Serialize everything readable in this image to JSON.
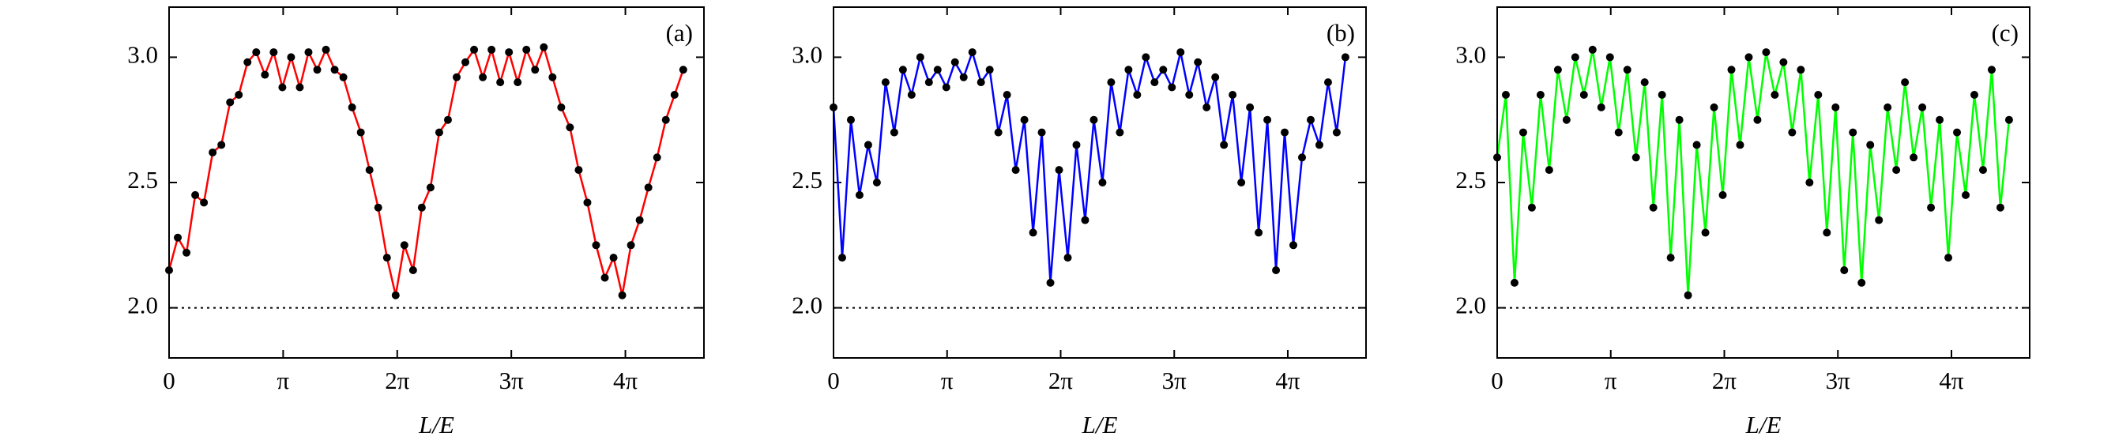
{
  "chart_data": [
    {
      "type": "line",
      "annotation": "(a)",
      "xlabel": "L/E",
      "color": "#ff0000",
      "marker_color": "#000000",
      "hline": {
        "value": 2,
        "style": "dotted"
      },
      "xlim": [
        0,
        14.73
      ],
      "ylim": [
        1.8,
        3.2
      ],
      "xticks": [
        0,
        {
          "value": 3.1416,
          "label": "π"
        },
        {
          "value": 6.2832,
          "label": "2π"
        },
        {
          "value": 9.4248,
          "label": "3π"
        },
        {
          "value": 12.5664,
          "label": "4π"
        }
      ],
      "yticks": [
        {
          "value": 2,
          "label": "2.0"
        },
        2.5,
        {
          "value": 3,
          "label": "3.0"
        }
      ],
      "x": [
        0,
        0.24,
        0.48,
        0.72,
        0.96,
        1.2,
        1.44,
        1.68,
        1.92,
        2.16,
        2.4,
        2.64,
        2.88,
        3.12,
        3.36,
        3.6,
        3.84,
        4.08,
        4.32,
        4.56,
        4.8,
        5.04,
        5.28,
        5.52,
        5.76,
        6,
        6.24,
        6.48,
        6.72,
        6.96,
        7.2,
        7.44,
        7.68,
        7.92,
        8.16,
        8.4,
        8.64,
        8.88,
        9.12,
        9.36,
        9.6,
        9.84,
        10.08,
        10.32,
        10.56,
        10.8,
        11.04,
        11.28,
        11.52,
        11.76,
        12,
        12.24,
        12.48,
        12.72,
        12.96,
        13.2,
        13.44,
        13.68,
        13.92,
        14.16
      ],
      "values": [
        2.15,
        2.28,
        2.22,
        2.45,
        2.42,
        2.62,
        2.65,
        2.82,
        2.85,
        2.98,
        3.02,
        2.93,
        3.02,
        2.88,
        3.0,
        2.88,
        3.02,
        2.95,
        3.03,
        2.95,
        2.92,
        2.8,
        2.7,
        2.55,
        2.4,
        2.2,
        2.05,
        2.25,
        2.15,
        2.4,
        2.48,
        2.7,
        2.75,
        2.92,
        2.98,
        3.03,
        2.92,
        3.03,
        2.9,
        3.02,
        2.9,
        3.03,
        2.95,
        3.04,
        2.92,
        2.8,
        2.72,
        2.55,
        2.42,
        2.25,
        2.12,
        2.2,
        2.05,
        2.25,
        2.35,
        2.48,
        2.6,
        2.75,
        2.85,
        2.95
      ]
    },
    {
      "type": "line",
      "annotation": "(b)",
      "xlabel": "L/E",
      "color": "#0000ff",
      "marker_color": "#000000",
      "hline": {
        "value": 2,
        "style": "dotted"
      },
      "xlim": [
        0,
        14.73
      ],
      "ylim": [
        1.8,
        3.2
      ],
      "xticks": [
        0,
        {
          "value": 3.1416,
          "label": "π"
        },
        {
          "value": 6.2832,
          "label": "2π"
        },
        {
          "value": 9.4248,
          "label": "3π"
        },
        {
          "value": 12.5664,
          "label": "4π"
        }
      ],
      "yticks": [
        {
          "value": 2,
          "label": "2.0"
        },
        2.5,
        {
          "value": 3,
          "label": "3.0"
        }
      ],
      "x": [
        0,
        0.24,
        0.48,
        0.72,
        0.96,
        1.2,
        1.44,
        1.68,
        1.92,
        2.16,
        2.4,
        2.64,
        2.88,
        3.12,
        3.36,
        3.6,
        3.84,
        4.08,
        4.32,
        4.56,
        4.8,
        5.04,
        5.28,
        5.52,
        5.76,
        6,
        6.24,
        6.48,
        6.72,
        6.96,
        7.2,
        7.44,
        7.68,
        7.92,
        8.16,
        8.4,
        8.64,
        8.88,
        9.12,
        9.36,
        9.6,
        9.84,
        10.08,
        10.32,
        10.56,
        10.8,
        11.04,
        11.28,
        11.52,
        11.76,
        12,
        12.24,
        12.48,
        12.72,
        12.96,
        13.2,
        13.44,
        13.68,
        13.92,
        14.16
      ],
      "values": [
        2.8,
        2.2,
        2.75,
        2.45,
        2.65,
        2.5,
        2.9,
        2.7,
        2.95,
        2.85,
        3.0,
        2.9,
        2.95,
        2.88,
        2.98,
        2.92,
        3.02,
        2.9,
        2.95,
        2.7,
        2.85,
        2.55,
        2.75,
        2.3,
        2.7,
        2.1,
        2.55,
        2.2,
        2.65,
        2.35,
        2.75,
        2.5,
        2.9,
        2.7,
        2.95,
        2.85,
        3.0,
        2.9,
        2.95,
        2.88,
        3.02,
        2.85,
        2.98,
        2.8,
        2.92,
        2.65,
        2.85,
        2.5,
        2.8,
        2.3,
        2.75,
        2.15,
        2.7,
        2.25,
        2.6,
        2.75,
        2.65,
        2.9,
        2.7,
        3.0
      ]
    },
    {
      "type": "line",
      "annotation": "(c)",
      "xlabel": "L/E",
      "color": "#00ff00",
      "marker_color": "#000000",
      "hline": {
        "value": 2,
        "style": "dotted"
      },
      "xlim": [
        0,
        14.73
      ],
      "ylim": [
        1.8,
        3.2
      ],
      "xticks": [
        0,
        {
          "value": 3.1416,
          "label": "π"
        },
        {
          "value": 6.2832,
          "label": "2π"
        },
        {
          "value": 9.4248,
          "label": "3π"
        },
        {
          "value": 12.5664,
          "label": "4π"
        }
      ],
      "yticks": [
        {
          "value": 2,
          "label": "2.0"
        },
        2.5,
        {
          "value": 3,
          "label": "3.0"
        }
      ],
      "x": [
        0,
        0.24,
        0.48,
        0.72,
        0.96,
        1.2,
        1.44,
        1.68,
        1.92,
        2.16,
        2.4,
        2.64,
        2.88,
        3.12,
        3.36,
        3.6,
        3.84,
        4.08,
        4.32,
        4.56,
        4.8,
        5.04,
        5.28,
        5.52,
        5.76,
        6,
        6.24,
        6.48,
        6.72,
        6.96,
        7.2,
        7.44,
        7.68,
        7.92,
        8.16,
        8.4,
        8.64,
        8.88,
        9.12,
        9.36,
        9.6,
        9.84,
        10.08,
        10.32,
        10.56,
        10.8,
        11.04,
        11.28,
        11.52,
        11.76,
        12,
        12.24,
        12.48,
        12.72,
        12.96,
        13.2,
        13.44,
        13.68,
        13.92,
        14.16
      ],
      "values": [
        2.6,
        2.85,
        2.1,
        2.7,
        2.4,
        2.85,
        2.55,
        2.95,
        2.75,
        3.0,
        2.85,
        3.03,
        2.8,
        3.0,
        2.7,
        2.95,
        2.6,
        2.9,
        2.4,
        2.85,
        2.2,
        2.75,
        2.05,
        2.65,
        2.3,
        2.8,
        2.45,
        2.95,
        2.65,
        3.0,
        2.75,
        3.02,
        2.85,
        2.98,
        2.7,
        2.95,
        2.5,
        2.85,
        2.3,
        2.8,
        2.15,
        2.7,
        2.1,
        2.65,
        2.35,
        2.8,
        2.55,
        2.9,
        2.6,
        2.8,
        2.4,
        2.75,
        2.2,
        2.7,
        2.45,
        2.85,
        2.55,
        2.95,
        2.4,
        2.75
      ]
    }
  ]
}
